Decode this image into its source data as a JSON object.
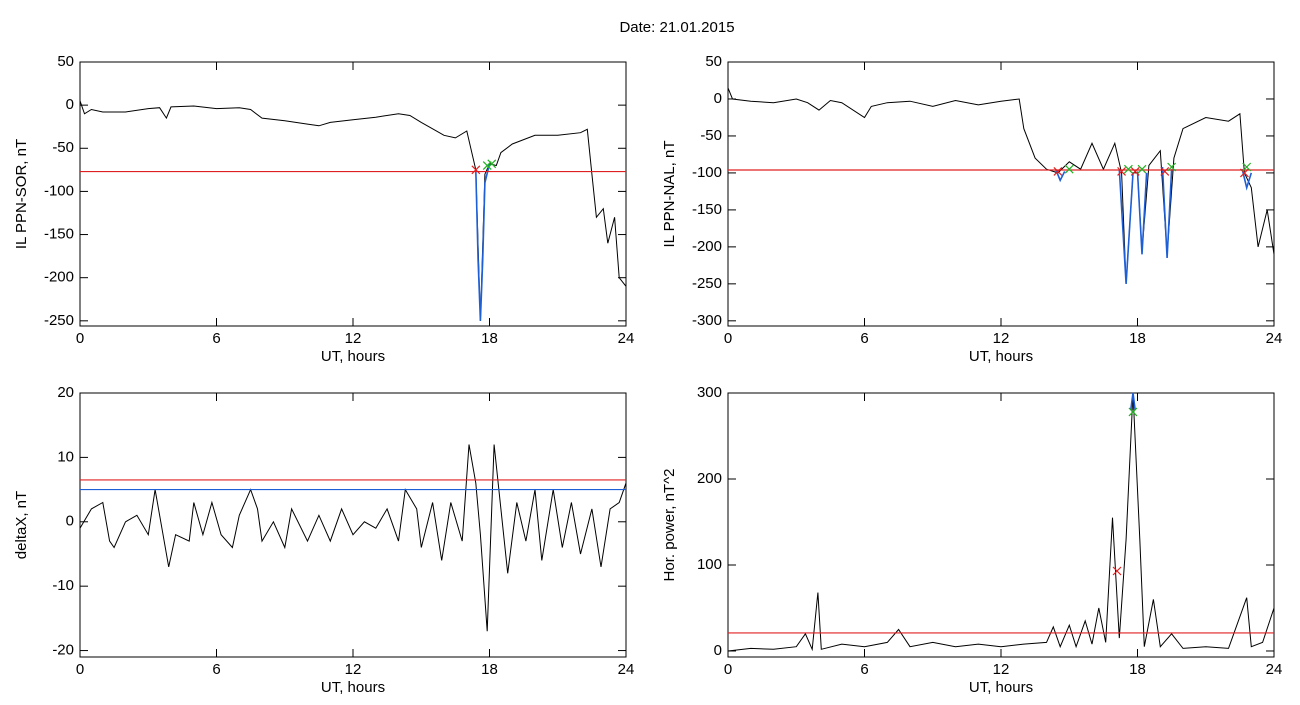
{
  "title": "Date:  21.01.2015",
  "chart_data": [
    {
      "type": "line",
      "ylabel": "IL PPN-SOR, nT",
      "xlabel": "UT, hours",
      "xlim": [
        0,
        24
      ],
      "xticks": [
        0,
        6,
        12,
        18,
        24
      ],
      "ylim": [
        -256,
        50
      ],
      "yticks": [
        -250,
        -200,
        -150,
        -100,
        -50,
        0,
        50
      ],
      "series": [
        {
          "color": "#000000",
          "x": [
            0,
            0.2,
            0.5,
            1,
            2,
            3,
            3.5,
            3.8,
            4,
            5,
            6,
            7,
            7.5,
            8,
            9,
            10,
            10.5,
            11,
            12,
            13,
            14,
            14.5,
            15,
            16,
            16.5,
            17,
            17.4,
            17.6,
            17.8,
            18,
            18.3,
            18.5,
            19,
            20,
            21,
            22,
            22.3,
            22.5,
            22.7,
            23,
            23.2,
            23.5,
            23.7,
            24
          ],
          "values": [
            5,
            -10,
            -5,
            -8,
            -8,
            -4,
            -3,
            -15,
            -2,
            -1,
            -4,
            -3,
            -5,
            -15,
            -18,
            -22,
            -24,
            -20,
            -17,
            -14,
            -10,
            -12,
            -20,
            -35,
            -38,
            -30,
            -75,
            -250,
            -80,
            -68,
            -70,
            -55,
            -45,
            -35,
            -35,
            -32,
            -28,
            -80,
            -130,
            -120,
            -160,
            -130,
            -200,
            -210
          ]
        },
        {
          "color": "#1f5fd6",
          "x": [
            17.4,
            17.5,
            17.6,
            17.7,
            17.8,
            18.0
          ],
          "values": [
            -75,
            -180,
            -250,
            -180,
            -90,
            -68
          ]
        }
      ],
      "hlines": [
        {
          "value": -77,
          "color": "#e02020"
        }
      ],
      "markers": [
        {
          "color": "#e02020",
          "x": [
            17.4
          ],
          "values": [
            -75
          ]
        },
        {
          "color": "#20b020",
          "x": [
            17.9,
            18.1
          ],
          "values": [
            -70,
            -68
          ]
        }
      ]
    },
    {
      "type": "line",
      "ylabel": "IL PPN-NAL, nT",
      "xlabel": "UT, hours",
      "xlim": [
        0,
        24
      ],
      "xticks": [
        0,
        6,
        12,
        18,
        24
      ],
      "ylim": [
        -307,
        50
      ],
      "yticks": [
        -300,
        -250,
        -200,
        -150,
        -100,
        -50,
        0,
        50
      ],
      "series": [
        {
          "color": "#000000",
          "x": [
            0,
            0.2,
            1,
            2,
            3,
            3.5,
            4,
            4.5,
            5,
            6,
            6.3,
            7,
            8,
            9,
            10,
            11,
            12,
            12.8,
            13,
            13.5,
            14,
            14.5,
            15,
            15.5,
            16,
            16.5,
            17,
            17.3,
            17.5,
            17.8,
            18,
            18.2,
            18.5,
            19,
            19.3,
            19.6,
            20,
            21,
            22,
            22.5,
            22.7,
            23,
            23.3,
            23.7,
            24
          ],
          "values": [
            15,
            0,
            -3,
            -5,
            0,
            -5,
            -15,
            -2,
            -5,
            -25,
            -10,
            -5,
            -3,
            -10,
            -2,
            -8,
            -3,
            0,
            -40,
            -80,
            -95,
            -100,
            -85,
            -95,
            -60,
            -95,
            -60,
            -100,
            -250,
            -100,
            -100,
            -205,
            -90,
            -70,
            -210,
            -80,
            -40,
            -25,
            -30,
            -20,
            -100,
            -120,
            -200,
            -150,
            -210
          ]
        },
        {
          "color": "#1f5fd6",
          "x": [
            14.4,
            14.6,
            14.8,
            null,
            17.2,
            17.5,
            17.8,
            null,
            18.0,
            18.2,
            18.4,
            null,
            19.1,
            19.3,
            19.5,
            null,
            22.6,
            22.8,
            23.0
          ],
          "values": [
            -95,
            -110,
            -98,
            null,
            -95,
            -250,
            -100,
            null,
            -98,
            -210,
            -100,
            null,
            -92,
            -215,
            -95,
            null,
            -95,
            -120,
            -100
          ]
        }
      ],
      "hlines": [
        {
          "value": -96,
          "color": "#e02020"
        }
      ],
      "markers": [
        {
          "color": "#e02020",
          "x": [
            14.5,
            17.3,
            17.9,
            19.2,
            22.7
          ],
          "values": [
            -98,
            -98,
            -98,
            -98,
            -100
          ]
        },
        {
          "color": "#20b020",
          "x": [
            15,
            17.6,
            18.2,
            19.5,
            22.8
          ],
          "values": [
            -95,
            -95,
            -95,
            -92,
            -92
          ]
        }
      ]
    },
    {
      "type": "line",
      "ylabel": "deltaX, nT",
      "xlabel": "UT, hours",
      "xlim": [
        0,
        24
      ],
      "xticks": [
        0,
        6,
        12,
        18,
        24
      ],
      "ylim": [
        -21,
        20
      ],
      "yticks": [
        -20,
        -10,
        0,
        10,
        20
      ],
      "series": [
        {
          "color": "#000000",
          "x": [
            0,
            0.5,
            1,
            1.3,
            1.5,
            2,
            2.5,
            3,
            3.3,
            3.6,
            3.9,
            4.2,
            4.8,
            5,
            5.4,
            5.8,
            6.2,
            6.7,
            7,
            7.5,
            7.8,
            8,
            8.5,
            9,
            9.3,
            10,
            10.5,
            11,
            11.5,
            12,
            12.5,
            13,
            13.5,
            14,
            14.3,
            14.8,
            15,
            15.5,
            15.9,
            16.3,
            16.8,
            17.1,
            17.4,
            17.6,
            17.9,
            18.2,
            18.5,
            18.8,
            19.2,
            19.6,
            20,
            20.3,
            20.8,
            21.2,
            21.6,
            22,
            22.5,
            22.9,
            23.3,
            23.7,
            24
          ],
          "values": [
            -1,
            2,
            3,
            -3,
            -4,
            0,
            1,
            -2,
            5,
            -1,
            -7,
            -2,
            -3,
            3,
            -2,
            3,
            -2,
            -4,
            1,
            5,
            2,
            -3,
            0,
            -4,
            2,
            -3,
            1,
            -3,
            2,
            -2,
            0,
            -1,
            2,
            -3,
            5,
            2,
            -4,
            3,
            -6,
            3,
            -3,
            12,
            6,
            -2,
            -17,
            12,
            2,
            -8,
            3,
            -3,
            5,
            -6,
            5,
            -4,
            3,
            -5,
            2,
            -7,
            2,
            3,
            6
          ]
        }
      ],
      "hlines": [
        {
          "value": 6.5,
          "color": "#e02020"
        },
        {
          "value": 5,
          "color": "#1f5fd6"
        }
      ],
      "markers": []
    },
    {
      "type": "line",
      "ylabel": "Hor. power, nT^2",
      "xlabel": "UT, hours",
      "xlim": [
        0,
        24
      ],
      "xticks": [
        0,
        6,
        12,
        18,
        24
      ],
      "ylim": [
        -7,
        300
      ],
      "yticks": [
        0,
        100,
        200,
        300
      ],
      "series": [
        {
          "color": "#000000",
          "x": [
            0,
            1,
            2,
            3,
            3.4,
            3.7,
            3.95,
            4.1,
            5,
            6,
            7,
            7.5,
            8,
            9,
            10,
            11,
            12,
            13,
            14,
            14.3,
            14.6,
            15,
            15.3,
            15.7,
            16,
            16.3,
            16.6,
            16.9,
            17.2,
            17.5,
            17.8,
            18.1,
            18.3,
            18.7,
            19,
            19.5,
            20,
            21,
            22,
            22.8,
            23,
            23.5,
            24
          ],
          "values": [
            0,
            3,
            2,
            5,
            20,
            2,
            68,
            2,
            8,
            5,
            10,
            25,
            5,
            10,
            5,
            8,
            5,
            8,
            10,
            28,
            5,
            30,
            5,
            35,
            8,
            50,
            10,
            155,
            15,
            130,
            300,
            130,
            5,
            60,
            5,
            20,
            3,
            5,
            3,
            62,
            5,
            10,
            50
          ]
        },
        {
          "color": "#1f5fd6",
          "x": [
            17.7,
            17.8,
            17.9
          ],
          "values": [
            280,
            300,
            280
          ]
        }
      ],
      "hlines": [
        {
          "value": 21,
          "color": "#e02020"
        }
      ],
      "markers": [
        {
          "color": "#e02020",
          "x": [
            17.1
          ],
          "values": [
            93
          ]
        },
        {
          "color": "#20b020",
          "x": [
            17.8
          ],
          "values": [
            278
          ]
        }
      ]
    }
  ]
}
